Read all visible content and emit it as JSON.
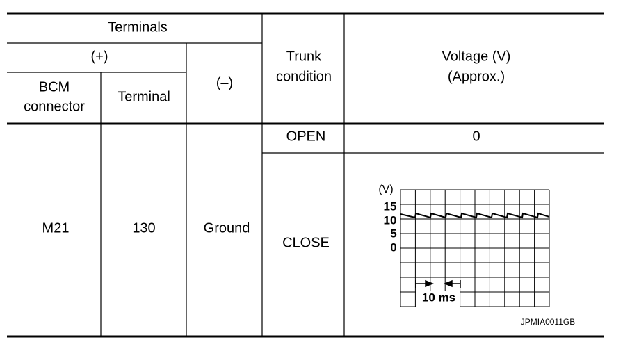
{
  "table": {
    "header": {
      "terminals": "Terminals",
      "plus": "(+)",
      "bcm_connector": [
        "BCM",
        "connector"
      ],
      "terminal": "Terminal",
      "minus": "(–)",
      "trunk_condition": [
        "Trunk",
        "condition"
      ],
      "voltage": [
        "Voltage (V)",
        "(Approx.)"
      ]
    },
    "rows": [
      {
        "connector": "M21",
        "terminal": "130",
        "minus": "Ground",
        "condition": "OPEN",
        "voltage": "0"
      },
      {
        "condition": "CLOSE"
      }
    ]
  },
  "waveform": {
    "unit": "(V)",
    "scale": [
      "15",
      "10",
      "5",
      "0"
    ],
    "time_div": "10 ms",
    "figure_id": "JPMIA0011GB"
  }
}
